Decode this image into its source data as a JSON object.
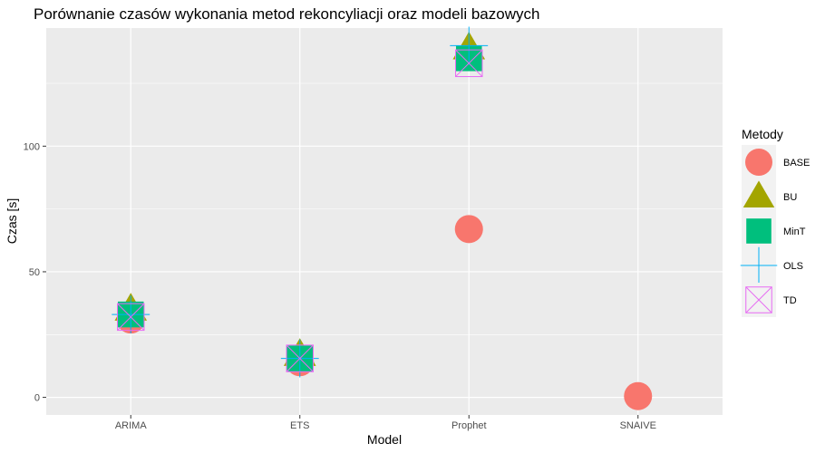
{
  "chart_data": {
    "type": "scatter",
    "title": "Porównanie czasów wykonania metod rekoncyliacji oraz modeli bazowych",
    "xlabel": "Model",
    "ylabel": "Czas [s]",
    "categories": [
      "ARIMA",
      "ETS",
      "Prophet",
      "SNAIVE"
    ],
    "yticks": [
      0,
      50,
      100
    ],
    "ylim": [
      -7,
      147
    ],
    "grid": true,
    "legend": {
      "title": "Metody",
      "position": "right"
    },
    "series": [
      {
        "name": "BASE",
        "shape": "circle",
        "color": "#F8766D",
        "values": [
          31,
          14,
          67,
          0.5
        ]
      },
      {
        "name": "BU",
        "shape": "triangle",
        "color": "#A3A500",
        "values": [
          35,
          17,
          139,
          null
        ]
      },
      {
        "name": "MinT",
        "shape": "square",
        "color": "#00BF7D",
        "values": [
          33,
          15.5,
          135,
          null
        ]
      },
      {
        "name": "OLS",
        "shape": "plus",
        "color": "#00B0F6",
        "values": [
          33,
          15.5,
          140,
          null
        ]
      },
      {
        "name": "TD",
        "shape": "square-x",
        "color": "#E76BF3",
        "values": [
          32,
          15.5,
          133,
          null
        ]
      }
    ]
  }
}
